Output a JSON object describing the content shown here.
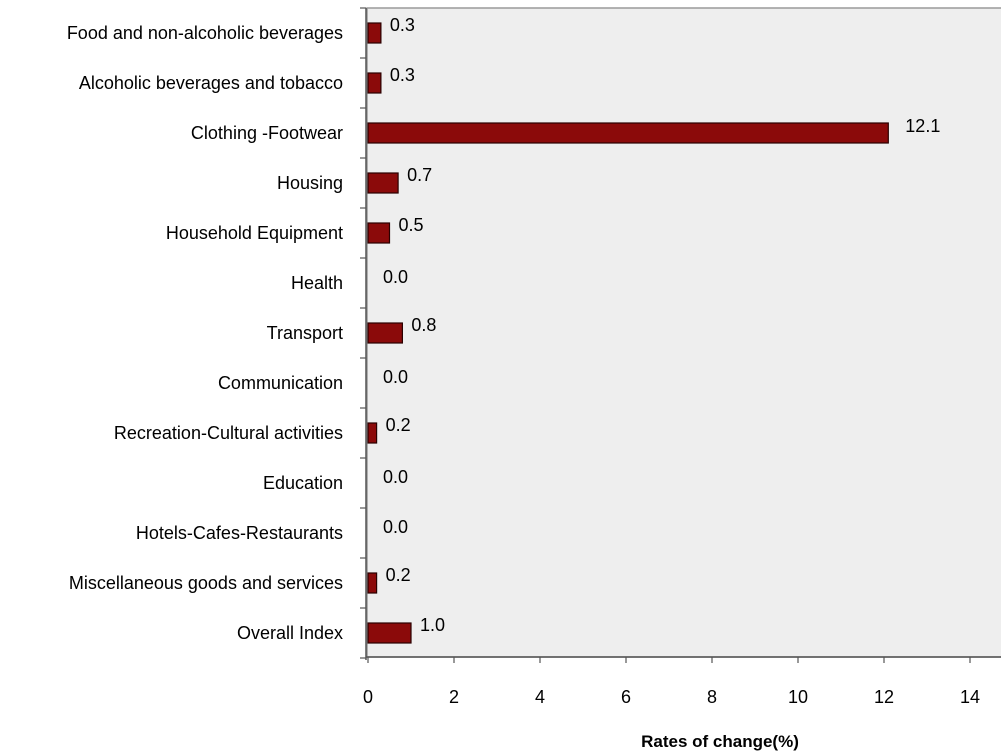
{
  "chart_data": {
    "type": "bar",
    "orientation": "horizontal",
    "categories": [
      "Food and non-alcoholic beverages",
      "Alcoholic beverages and tobacco",
      "Clothing -Footwear",
      "Housing",
      "Household Equipment",
      "Health",
      "Transport",
      "Communication",
      "Recreation-Cultural activities",
      "Education",
      "Hotels-Cafes-Restaurants",
      "Miscellaneous goods and services",
      "Overall Index"
    ],
    "values": [
      0.3,
      0.3,
      12.1,
      0.7,
      0.5,
      0.0,
      0.8,
      0.0,
      0.2,
      0.0,
      0.0,
      0.2,
      1.0
    ],
    "value_labels": [
      "0.3",
      "0.3",
      "12.1",
      "0.7",
      "0.5",
      "0.0",
      "0.8",
      "0.0",
      "0.2",
      "0.0",
      "0.0",
      "0.2",
      "1.0"
    ],
    "xlabel": "Rates of change(%)",
    "ylabel": "",
    "title": "",
    "xlim": [
      0,
      14
    ],
    "xticks": [
      "0",
      "2",
      "4",
      "6",
      "8",
      "10",
      "12",
      "14"
    ],
    "grid": false,
    "legend": "none",
    "colors": {
      "bar_fill": "#8b0a0a",
      "bar_stroke": "#2a0000",
      "plot_background": "#eeeeee",
      "plot_border": "#9a9a9a",
      "axis": "#555555"
    }
  }
}
